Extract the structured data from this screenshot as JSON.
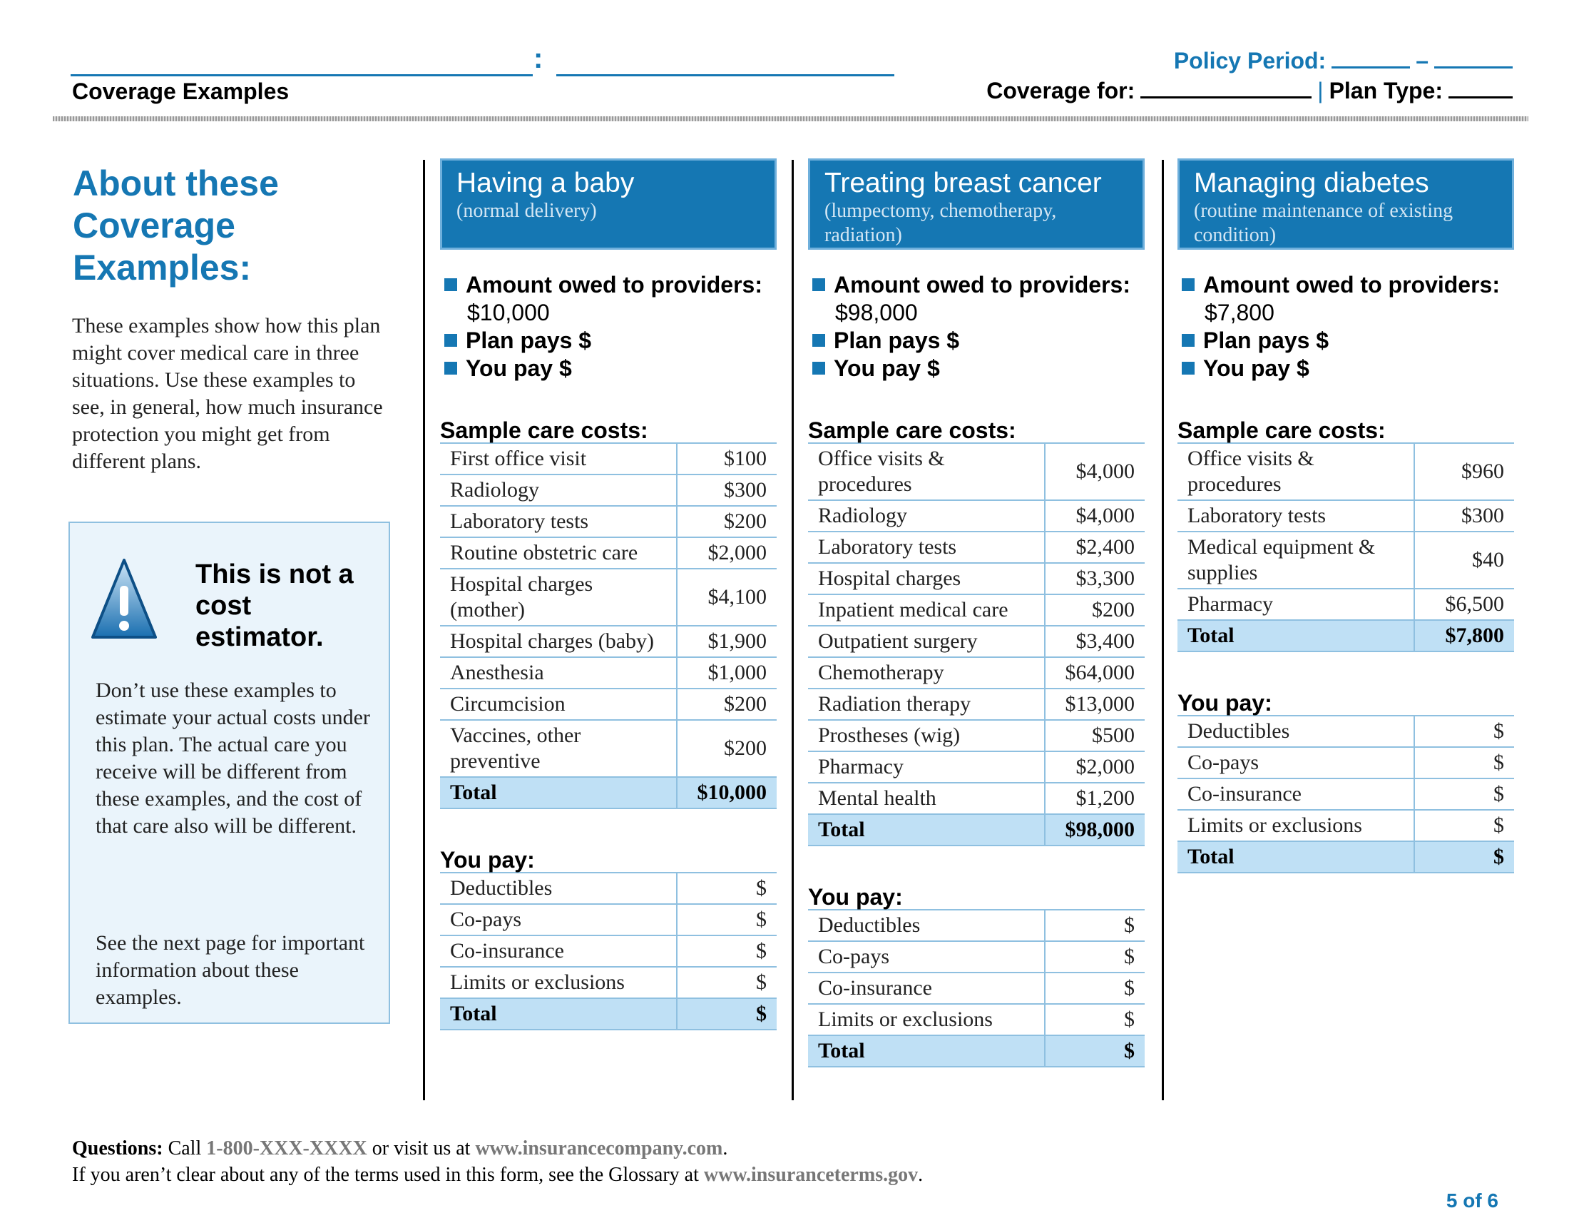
{
  "header": {
    "colon": ":",
    "section": "Coverage Examples",
    "policy_period": "Policy Period:",
    "dash": "–",
    "coverage_for": "Coverage for:",
    "separator": "|",
    "plan_type": "Plan Type:"
  },
  "sidebar": {
    "title": "About these Coverage Examples:",
    "intro": "These examples show how this plan might cover medical care in three situations. Use these examples to see, in general, how much insurance protection you might get from different plans.",
    "warning_title": "This is not a cost estimator.",
    "paragraphs": [
      "Don’t use these examples to estimate your actual costs under this plan. The actual care you receive will be different from these examples, and the cost of that care also will be different.",
      "See the next page for important information about these examples."
    ]
  },
  "examples": [
    {
      "title": "Having a baby",
      "subtitle": "(normal delivery)",
      "amount_label": "Amount owed to providers:",
      "amount": "$10,000",
      "plan_pays": "Plan pays $",
      "you_pay": "You pay $",
      "sample_heading": "Sample care costs:",
      "sample_rows": [
        [
          "First office visit",
          "$100"
        ],
        [
          "Radiology",
          "$300"
        ],
        [
          "Laboratory tests",
          "$200"
        ],
        [
          "Routine obstetric care",
          "$2,000"
        ],
        [
          "Hospital charges (mother)",
          "$4,100"
        ],
        [
          "Hospital charges (baby)",
          "$1,900"
        ],
        [
          "Anesthesia",
          "$1,000"
        ],
        [
          "Circumcision",
          "$200"
        ],
        [
          "Vaccines, other preventive",
          "$200"
        ]
      ],
      "sample_total": [
        "Total",
        "$10,000"
      ],
      "you_pay_heading": "You pay:",
      "you_pay_rows": [
        [
          "Deductibles",
          "$"
        ],
        [
          "Co-pays",
          "$"
        ],
        [
          "Co-insurance",
          "$"
        ],
        [
          "Limits or exclusions",
          "$"
        ]
      ],
      "you_pay_total": [
        "Total",
        "$"
      ]
    },
    {
      "title": "Treating breast cancer",
      "subtitle": "(lumpectomy, chemotherapy, radiation)",
      "amount_label": "Amount owed to providers:",
      "amount": "$98,000",
      "plan_pays": "Plan pays $",
      "you_pay": "You pay $",
      "sample_heading": "Sample care costs:",
      "sample_rows": [
        [
          "Office visits & procedures",
          "$4,000"
        ],
        [
          "Radiology",
          "$4,000"
        ],
        [
          "Laboratory tests",
          "$2,400"
        ],
        [
          "Hospital charges",
          "$3,300"
        ],
        [
          "Inpatient medical care",
          "$200"
        ],
        [
          "Outpatient surgery",
          "$3,400"
        ],
        [
          "Chemotherapy",
          "$64,000"
        ],
        [
          "Radiation therapy",
          "$13,000"
        ],
        [
          "Prostheses (wig)",
          "$500"
        ],
        [
          "Pharmacy",
          "$2,000"
        ],
        [
          "Mental health",
          "$1,200"
        ]
      ],
      "sample_total": [
        "Total",
        "$98,000"
      ],
      "you_pay_heading": "You pay:",
      "you_pay_rows": [
        [
          "Deductibles",
          "$"
        ],
        [
          "Co-pays",
          "$"
        ],
        [
          "Co-insurance",
          "$"
        ],
        [
          "Limits or exclusions",
          "$"
        ]
      ],
      "you_pay_total": [
        "Total",
        "$"
      ]
    },
    {
      "title": "Managing diabetes",
      "subtitle": "(routine maintenance of existing condition)",
      "amount_label": "Amount owed to providers:",
      "amount": "$7,800",
      "plan_pays": "Plan pays $",
      "you_pay": "You pay $",
      "sample_heading": "Sample care costs:",
      "sample_rows": [
        [
          "Office visits & procedures",
          "$960"
        ],
        [
          "Laboratory tests",
          "$300"
        ],
        [
          "Medical equipment & supplies",
          "$40"
        ],
        [
          "Pharmacy",
          "$6,500"
        ]
      ],
      "sample_total": [
        "Total",
        "$7,800"
      ],
      "you_pay_heading": "You pay:",
      "you_pay_rows": [
        [
          "Deductibles",
          "$"
        ],
        [
          "Co-pays",
          "$"
        ],
        [
          "Co-insurance",
          "$"
        ],
        [
          "Limits or exclusions",
          "$"
        ]
      ],
      "you_pay_total": [
        "Total",
        "$"
      ]
    }
  ],
  "footer": {
    "questions": "Questions:",
    "call": "Call",
    "phone": "1-800-XXX-XXXX",
    "visit": "or visit us at",
    "url": "www.insurancecompany.com",
    "end1": ".",
    "glossary": "If you aren’t clear about any of the terms used in this form, see the Glossary at",
    "glossary_url": "www.insuranceterms.gov",
    "end2": ".",
    "page": "5 of 6"
  }
}
